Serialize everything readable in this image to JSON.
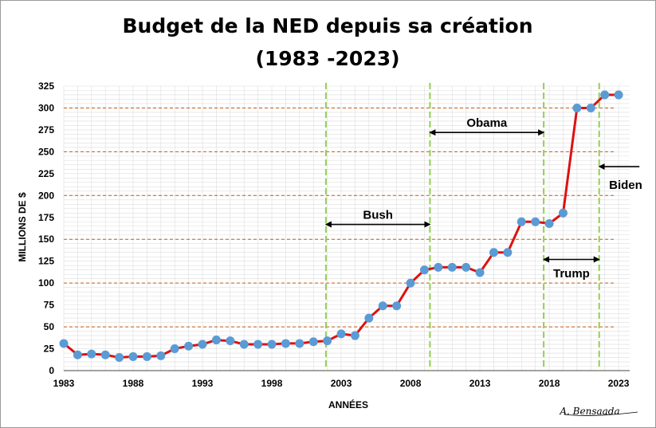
{
  "chart_data": {
    "type": "line",
    "title_line1": "Budget de la NED depuis sa création",
    "title_line2": "(1983 -2023)",
    "xlabel": "ANNÉES",
    "ylabel": "MILLIONS DE $",
    "xlim": [
      1983,
      2023.8
    ],
    "ylim": [
      0,
      325
    ],
    "x_ticks": [
      1983,
      1988,
      1993,
      1998,
      2003,
      2008,
      2013,
      2018,
      2023
    ],
    "y_ticks": [
      0,
      25,
      50,
      75,
      100,
      125,
      150,
      175,
      200,
      225,
      250,
      275,
      300,
      325
    ],
    "series": [
      {
        "x": [
          1983,
          1984,
          1985,
          1986,
          1987,
          1988,
          1989,
          1990,
          1991,
          1992,
          1993,
          1994,
          1995,
          1996,
          1997,
          1998,
          1999,
          2000,
          2001,
          2002,
          2003,
          2004,
          2005,
          2006,
          2007,
          2008,
          2009,
          2010,
          2011,
          2012,
          2013,
          2014,
          2015,
          2016,
          2017,
          2018,
          2019,
          2020,
          2021,
          2022,
          2023
        ],
        "values": [
          31,
          18,
          19,
          18,
          15,
          16,
          16,
          17,
          25,
          28,
          30,
          35,
          34,
          30,
          30,
          30,
          31,
          31,
          33,
          34,
          42,
          40,
          60,
          74,
          74,
          100,
          115,
          118,
          118,
          118,
          112,
          135,
          135,
          170,
          170,
          168,
          180,
          300,
          300,
          315,
          315
        ]
      }
    ],
    "colors": {
      "line": "#dd1111",
      "marker": "#5b9bd5",
      "gridline": "#c55a11",
      "minor_grid": "#dddddd",
      "period_line": "#92d050"
    },
    "period_lines": [
      2001.9,
      2009.4,
      2017.6,
      2021.6
    ],
    "annotations": [
      {
        "label": "Bush",
        "from": 2001.9,
        "to": 2009.4,
        "y": 167,
        "text_y": 178
      },
      {
        "label": "Obama",
        "from": 2009.4,
        "to": 2017.6,
        "y": 272,
        "text_y": 283
      },
      {
        "label": "Trump",
        "from": 2017.6,
        "to": 2021.6,
        "y": 127,
        "text_y": 111
      },
      {
        "label": "Biden",
        "from": 2024.5,
        "to": 2021.6,
        "y": 233,
        "text_y": 212
      }
    ],
    "signature": "A. Bensaada"
  }
}
